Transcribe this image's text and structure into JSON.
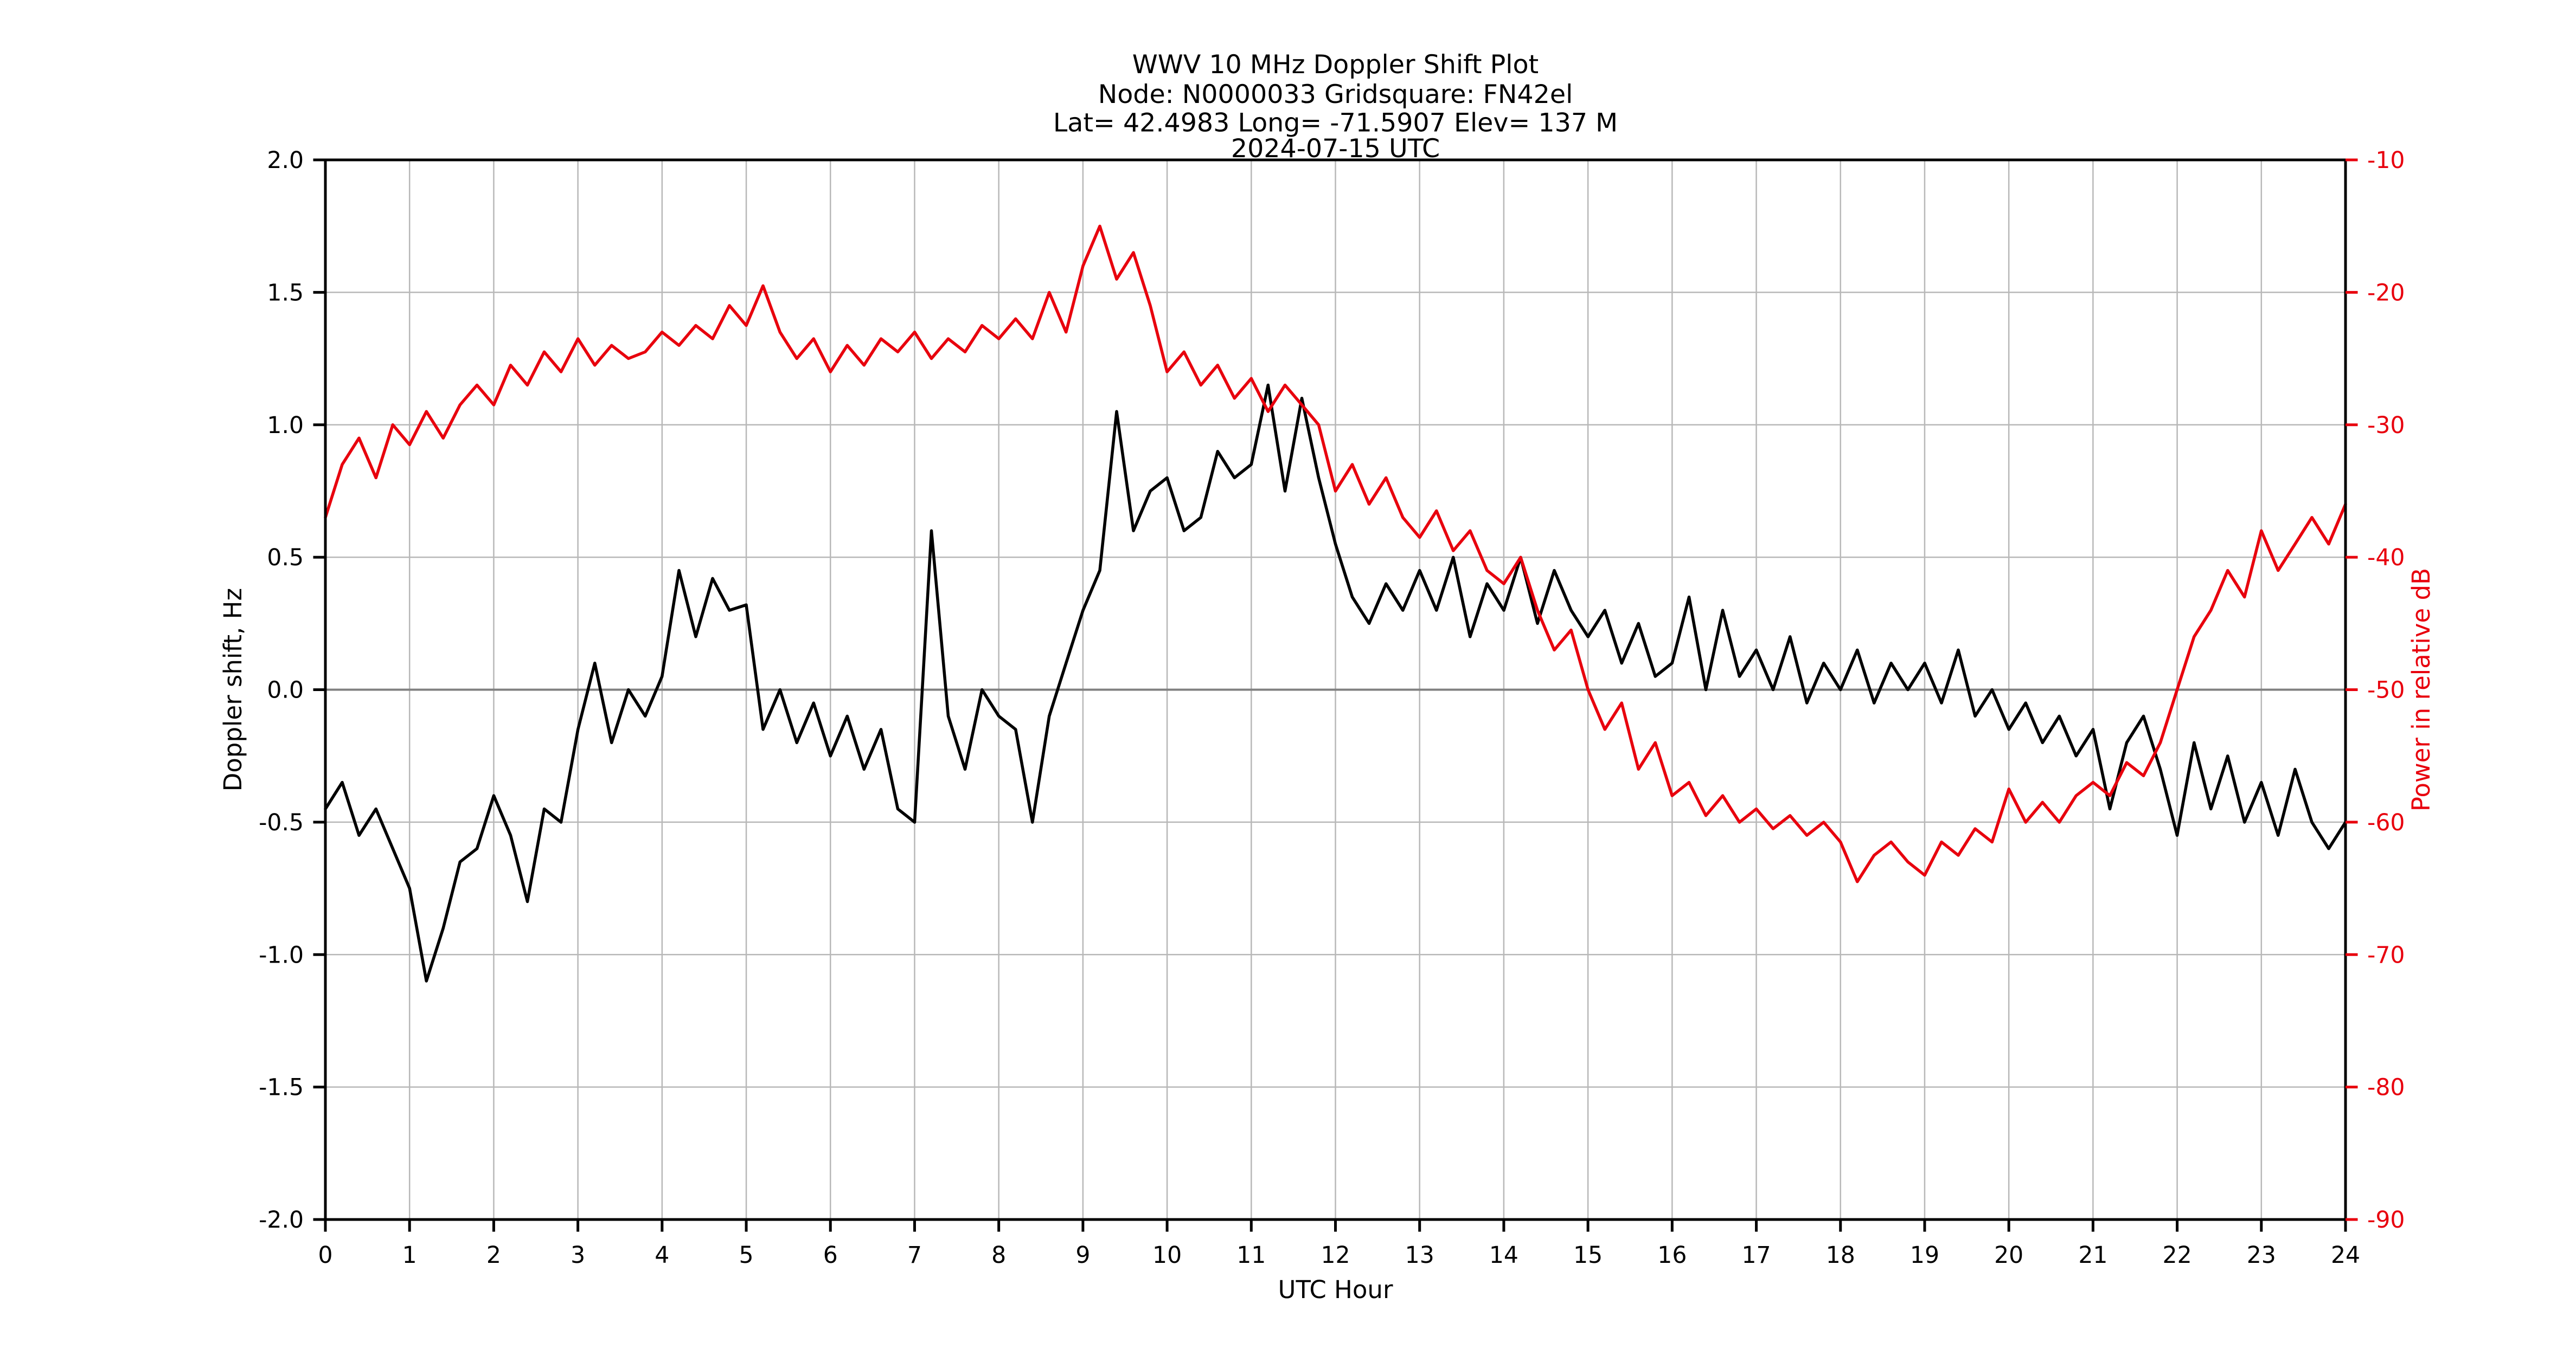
{
  "figure": {
    "background_color": "#ffffff"
  },
  "chart_data": {
    "type": "line",
    "title": "WWV 10 MHz Doppler Shift Plot",
    "title_lines": [
      "WWV 10 MHz Doppler Shift Plot",
      "Node:  N0000033     Gridsquare:  FN42el",
      "Lat= 42.4983    Long= -71.5907   Elev= 137 M",
      "2024-07-15  UTC"
    ],
    "xlabel": "UTC Hour",
    "ylabel_left": "Doppler shift, Hz",
    "ylabel_right": "Power in relative dB",
    "grid": true,
    "legend": "none",
    "x_range": [
      0,
      24
    ],
    "y_left_range": [
      -2.0,
      2.0
    ],
    "y_right_range": [
      -90,
      -10
    ],
    "x_ticks": [
      0,
      1,
      2,
      3,
      4,
      5,
      6,
      7,
      8,
      9,
      10,
      11,
      12,
      13,
      14,
      15,
      16,
      17,
      18,
      19,
      20,
      21,
      22,
      23,
      24
    ],
    "y_left_tick_labels": [
      "2.0",
      "1.5",
      "1.0",
      "0.5",
      "0.0",
      "-0.5",
      "-1.0",
      "-1.5",
      "-2.0"
    ],
    "y_left_tick_values": [
      2.0,
      1.5,
      1.0,
      0.5,
      0.0,
      -0.5,
      -1.0,
      -1.5,
      -2.0
    ],
    "y_right_tick_labels": [
      "-10",
      "-20",
      "-30",
      "-40",
      "-50",
      "-60",
      "-70",
      "-80",
      "-90"
    ],
    "y_right_tick_values": [
      -10,
      -20,
      -30,
      -40,
      -50,
      -60,
      -70,
      -80,
      -90
    ],
    "zero_line_left_value": 0.0,
    "x_start": 0,
    "x_step": 0.2,
    "series": [
      {
        "name": "Doppler shift",
        "axis": "left",
        "units": "Hz",
        "color": "#000000",
        "values": [
          -0.45,
          -0.35,
          -0.55,
          -0.45,
          -0.6,
          -0.75,
          -1.1,
          -0.9,
          -0.65,
          -0.6,
          -0.4,
          -0.55,
          -0.8,
          -0.45,
          -0.5,
          -0.15,
          0.1,
          -0.2,
          0.0,
          -0.1,
          0.05,
          0.45,
          0.2,
          0.42,
          0.3,
          0.32,
          -0.15,
          0.0,
          -0.2,
          -0.05,
          -0.25,
          -0.1,
          -0.3,
          -0.15,
          -0.45,
          -0.5,
          0.6,
          -0.1,
          -0.3,
          0.0,
          -0.1,
          -0.15,
          -0.5,
          -0.1,
          0.1,
          0.3,
          0.45,
          1.05,
          0.6,
          0.75,
          0.8,
          0.6,
          0.65,
          0.9,
          0.8,
          0.85,
          1.15,
          0.75,
          1.1,
          0.8,
          0.55,
          0.35,
          0.25,
          0.4,
          0.3,
          0.45,
          0.3,
          0.5,
          0.2,
          0.4,
          0.3,
          0.5,
          0.25,
          0.45,
          0.3,
          0.2,
          0.3,
          0.1,
          0.25,
          0.05,
          0.1,
          0.35,
          0.0,
          0.3,
          0.05,
          0.15,
          0.0,
          0.2,
          -0.05,
          0.1,
          0.0,
          0.15,
          -0.05,
          0.1,
          0.0,
          0.1,
          -0.05,
          0.15,
          -0.1,
          0.0,
          -0.15,
          -0.05,
          -0.2,
          -0.1,
          -0.25,
          -0.15,
          -0.45,
          -0.2,
          -0.1,
          -0.3,
          -0.55,
          -0.2,
          -0.45,
          -0.25,
          -0.5,
          -0.35,
          -0.55,
          -0.3,
          -0.5,
          -0.6,
          -0.5
        ]
      },
      {
        "name": "Power in relative dB",
        "axis": "right",
        "units": "dB",
        "color": "#e8000d",
        "values": [
          -37,
          -33,
          -31,
          -34,
          -30,
          -31.5,
          -29,
          -31,
          -28.5,
          -27,
          -28.5,
          -25.5,
          -27,
          -24.5,
          -26,
          -23.5,
          -25.5,
          -24,
          -25,
          -24.5,
          -23,
          -24,
          -22.5,
          -23.5,
          -21,
          -22.5,
          -19.5,
          -23,
          -25,
          -23.5,
          -26,
          -24,
          -25.5,
          -23.5,
          -24.5,
          -23,
          -25,
          -23.5,
          -24.5,
          -22.5,
          -23.5,
          -22,
          -23.5,
          -20,
          -23,
          -18,
          -15,
          -19,
          -17,
          -21,
          -26,
          -24.5,
          -27,
          -25.5,
          -28,
          -26.5,
          -29,
          -27,
          -28.5,
          -30,
          -35,
          -33,
          -36,
          -34,
          -37,
          -38.5,
          -36.5,
          -39.5,
          -38,
          -41,
          -42,
          -40,
          -44,
          -47,
          -45.5,
          -50,
          -53,
          -51,
          -56,
          -54,
          -58,
          -57,
          -59.5,
          -58,
          -60,
          -59,
          -60.5,
          -59.5,
          -61,
          -60,
          -61.5,
          -64.5,
          -62.5,
          -61.5,
          -63,
          -64,
          -61.5,
          -62.5,
          -60.5,
          -61.5,
          -57.5,
          -60,
          -58.5,
          -60,
          -58,
          -57,
          -58,
          -55.5,
          -56.5,
          -54,
          -50,
          -46,
          -44,
          -41,
          -43,
          -38,
          -41,
          -39,
          -37,
          -39,
          -36
        ]
      }
    ],
    "colors": {
      "grid": "#b8b8b8",
      "zero_line": "#808080",
      "axis_frame": "#000000",
      "left_tick_text": "#000000",
      "right_tick_text": "#e8000d",
      "x_tick_text": "#000000"
    }
  }
}
